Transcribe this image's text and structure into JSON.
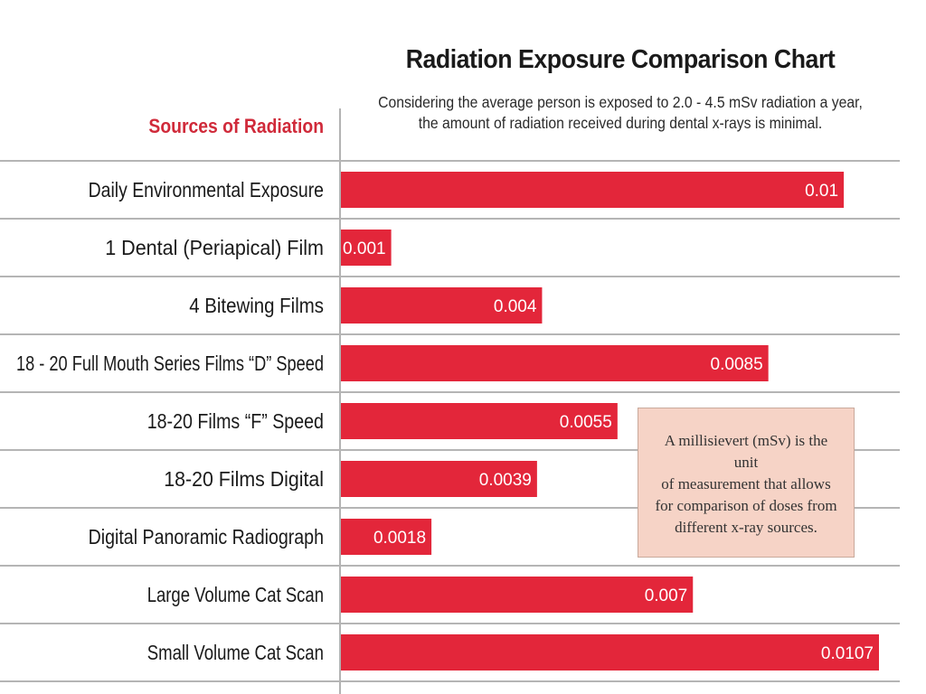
{
  "chart_data": {
    "type": "bar",
    "orientation": "horizontal",
    "title": "Radiation Exposure Comparison Chart",
    "subtitle_lines": [
      "Considering the average person is exposed to 2.0 - 4.5 mSv radiation a year,",
      "the amount of radiation received during dental x-rays is minimal."
    ],
    "category_axis_heading": "Sources of Radiation",
    "categories": [
      "Daily Environmental Exposure",
      "1 Dental (Periapical) Film",
      "4 Bitewing Films",
      "18 - 20 Full Mouth Series Films “D” Speed",
      "18-20 Films “F” Speed",
      "18-20 Films Digital",
      "Digital Panoramic Radiograph",
      "Large Volume Cat Scan",
      "Small Volume Cat Scan"
    ],
    "values": [
      0.01,
      0.001,
      0.004,
      0.0085,
      0.0055,
      0.0039,
      0.0018,
      0.007,
      0.0107
    ],
    "data_labels": [
      "0.01",
      "0.001",
      "0.004",
      "0.0085",
      "0.0055",
      "0.0039",
      "0.0018",
      "0.007",
      "0.0107"
    ],
    "xlim": [
      0,
      0.0107
    ],
    "grid": true,
    "colors": {
      "bar": "#e3263a",
      "grid": "#b5b5b5",
      "heading": "#d02a3a"
    }
  },
  "note": {
    "lines": [
      "A millisievert (mSv) is the unit",
      "of measurement that allows",
      "for comparison of doses from",
      "different x-ray sources."
    ],
    "background": "#f6d3c6"
  }
}
